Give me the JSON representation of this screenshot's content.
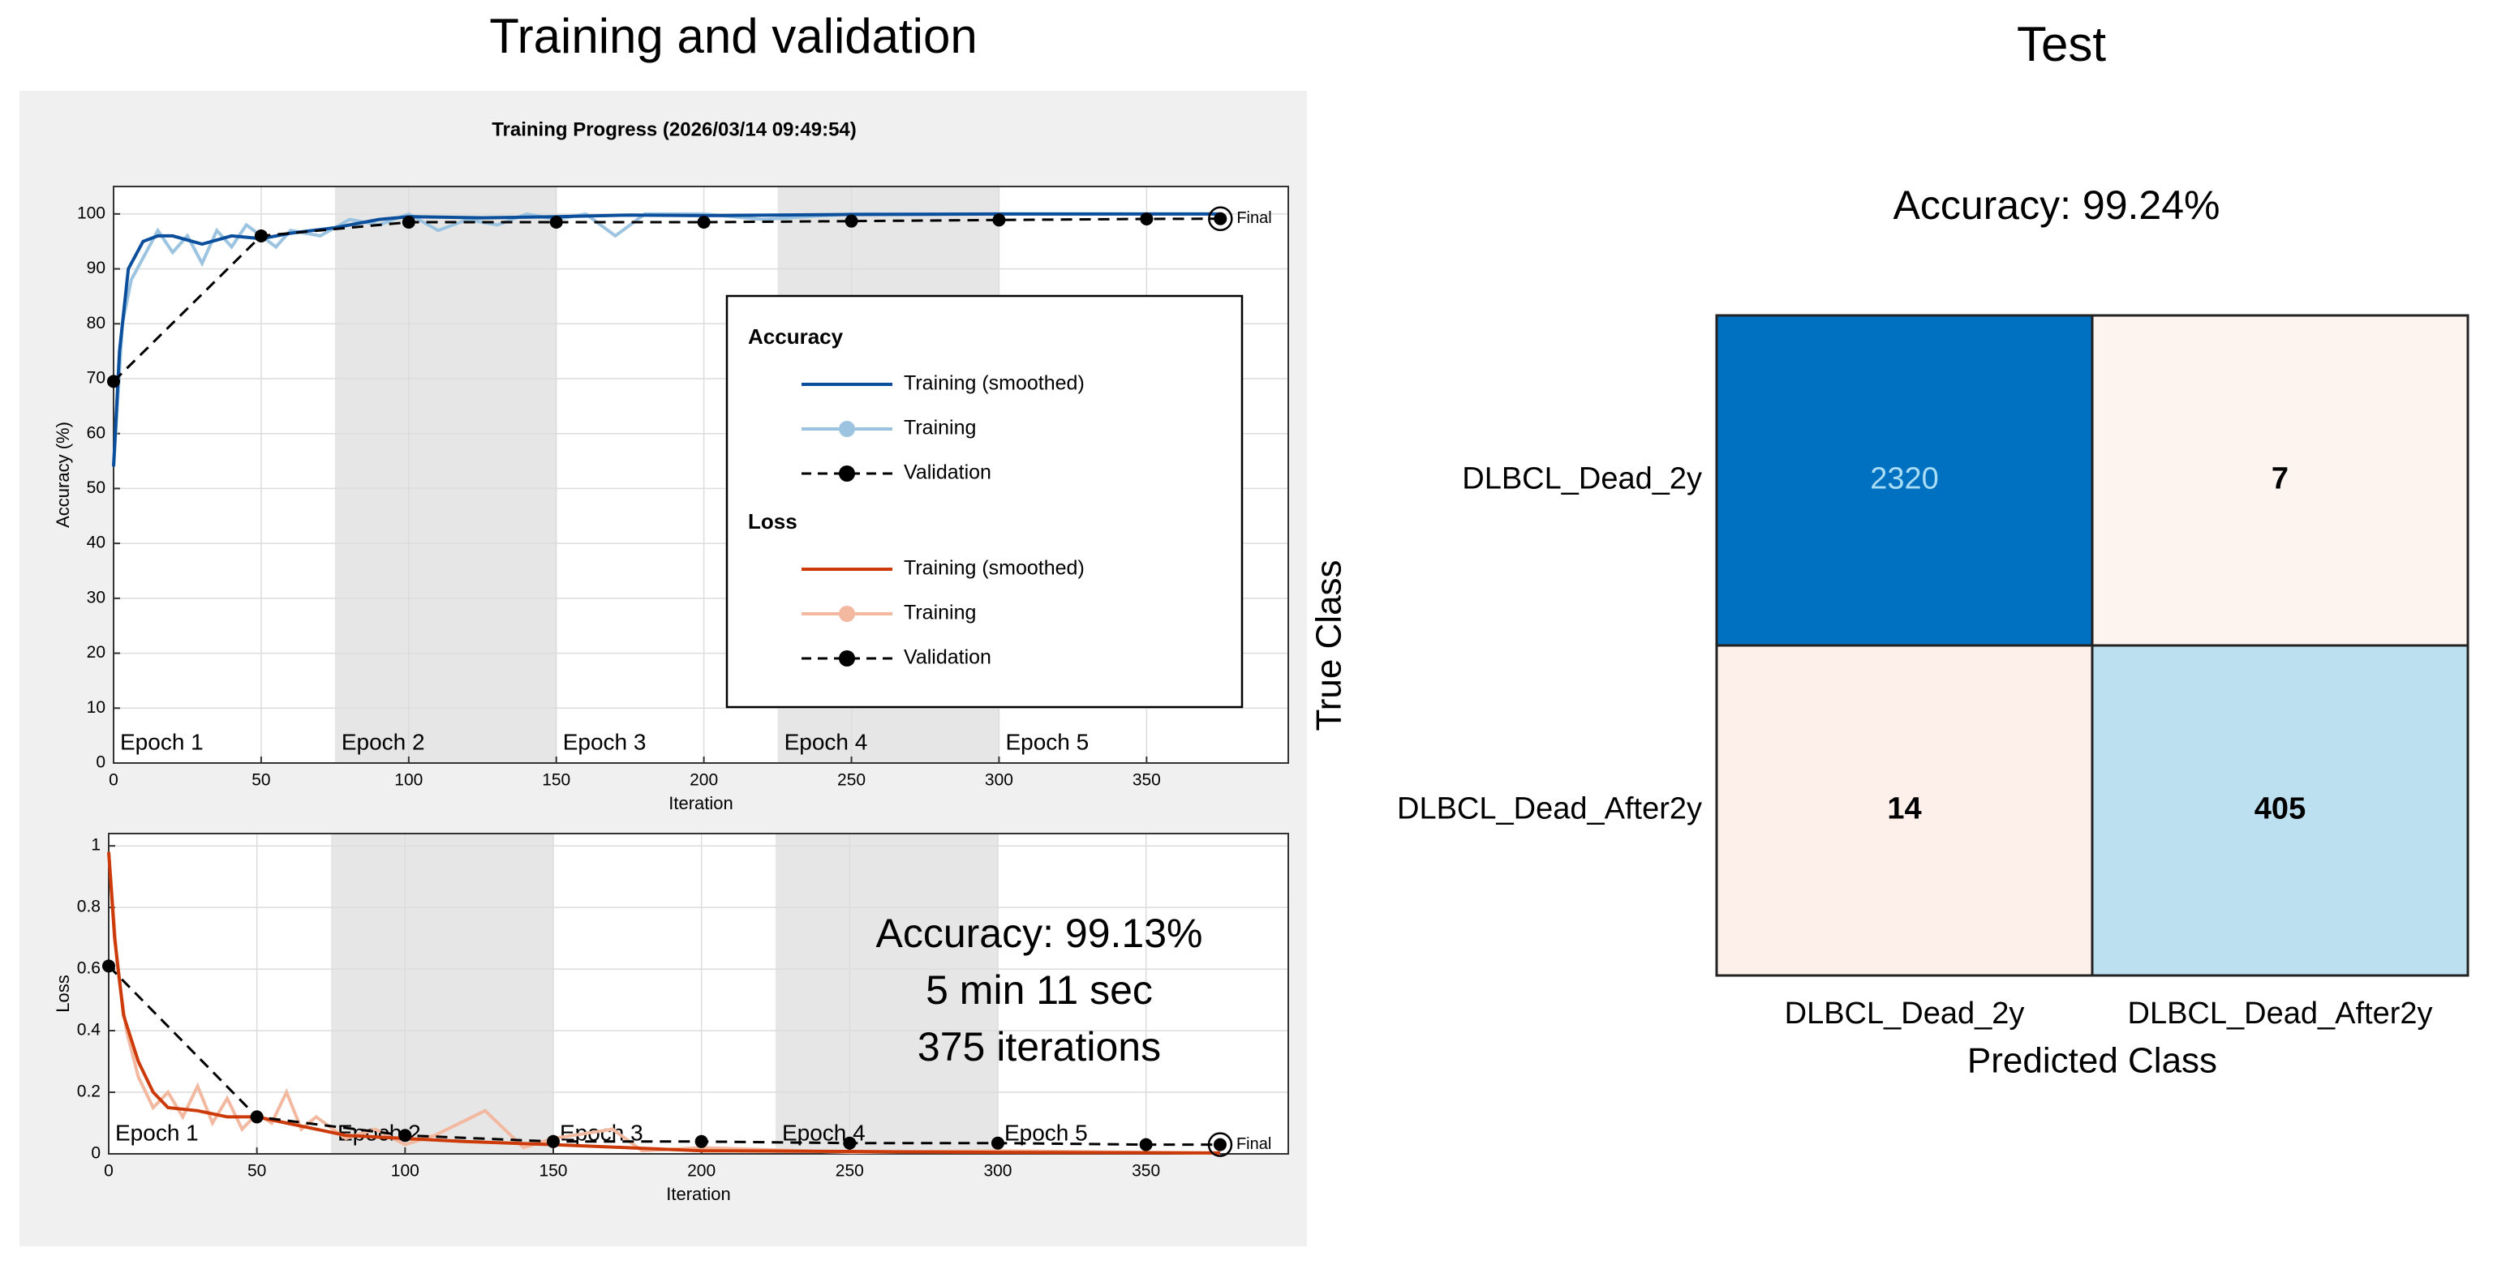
{
  "panel_titles": [
    "Training and validation",
    "Test"
  ],
  "progress_title": "Training Progress (2026/03/14 09:49:54)",
  "chart_data": [
    {
      "type": "line",
      "ylabel": "Accuracy (%)",
      "xlabel": "Iteration",
      "legend_title": "Accuracy",
      "final_label": "Final",
      "xlim": [
        0,
        398
      ],
      "ylim": [
        0,
        105
      ],
      "xticks": [
        0,
        50,
        100,
        150,
        200,
        250,
        300,
        350
      ],
      "yticks": [
        0,
        10,
        20,
        30,
        40,
        50,
        60,
        70,
        80,
        90,
        100
      ],
      "grid": true,
      "epochs": [
        {
          "start": 0,
          "end": 75,
          "label": "Epoch 1",
          "shaded": false
        },
        {
          "start": 75,
          "end": 150,
          "label": "Epoch 2",
          "shaded": true
        },
        {
          "start": 150,
          "end": 225,
          "label": "Epoch 3",
          "shaded": false
        },
        {
          "start": 225,
          "end": 300,
          "label": "Epoch 4",
          "shaded": true
        },
        {
          "start": 300,
          "end": 375,
          "label": "Epoch 5",
          "shaded": false
        }
      ],
      "series": [
        {
          "name": "Training (smoothed)",
          "color": "#0b4f9c",
          "dashed": false,
          "markers": false,
          "legend_marker": false,
          "x": [
            0,
            2,
            5,
            10,
            15,
            20,
            30,
            40,
            50,
            60,
            75,
            90,
            100,
            125,
            150,
            175,
            200,
            250,
            300,
            375
          ],
          "values": [
            54,
            75,
            90,
            95,
            96,
            96,
            94.5,
            96,
            95.5,
            96.5,
            97.5,
            99,
            99.5,
            99.3,
            99.5,
            99.8,
            99.7,
            99.9,
            100,
            100
          ]
        },
        {
          "name": "Training",
          "color": "#9cc4e0",
          "dashed": false,
          "markers": false,
          "legend_marker": true,
          "x": [
            0,
            3,
            6,
            10,
            15,
            20,
            25,
            30,
            35,
            40,
            45,
            50,
            55,
            60,
            70,
            80,
            90,
            100,
            110,
            120,
            130,
            140,
            150,
            160,
            170,
            180,
            200,
            220,
            250,
            300,
            375
          ],
          "values": [
            54,
            80,
            88,
            92,
            97,
            93,
            96,
            91,
            97,
            94,
            98,
            96,
            94,
            97,
            96,
            99,
            98,
            100,
            97,
            99,
            98,
            100,
            99,
            100,
            96,
            100,
            100,
            99,
            100,
            100,
            100
          ]
        },
        {
          "name": "Validation",
          "color": "#000000",
          "dashed": true,
          "markers": true,
          "legend_marker": true,
          "x": [
            0,
            50,
            100,
            150,
            200,
            250,
            300,
            350,
            375
          ],
          "values": [
            69.5,
            96,
            98.5,
            98.5,
            98.5,
            98.7,
            98.9,
            99.1,
            99.13
          ]
        }
      ]
    },
    {
      "type": "line",
      "ylabel": "Loss",
      "xlabel": "Iteration",
      "legend_title": "Loss",
      "final_label": "Final",
      "xlim": [
        0,
        398
      ],
      "ylim": [
        0,
        1.04
      ],
      "xticks": [
        0,
        50,
        100,
        150,
        200,
        250,
        300,
        350
      ],
      "yticks": [
        0,
        0.2,
        0.4,
        0.6,
        0.8,
        1
      ],
      "grid": true,
      "epochs": [
        {
          "start": 0,
          "end": 75,
          "label": "Epoch 1",
          "shaded": false
        },
        {
          "start": 75,
          "end": 150,
          "label": "Epoch 2",
          "shaded": true
        },
        {
          "start": 150,
          "end": 225,
          "label": "Epoch 3",
          "shaded": false
        },
        {
          "start": 225,
          "end": 300,
          "label": "Epoch 4",
          "shaded": true
        },
        {
          "start": 300,
          "end": 375,
          "label": "Epoch 5",
          "shaded": false
        }
      ],
      "annotations": [
        "Accuracy: 99.13%",
        "5 min 11 sec",
        "375 iterations"
      ],
      "series": [
        {
          "name": "Training (smoothed)",
          "color": "#cc3a0a",
          "dashed": false,
          "markers": false,
          "legend_marker": false,
          "x": [
            0,
            2,
            5,
            10,
            15,
            20,
            30,
            40,
            50,
            60,
            70,
            80,
            100,
            120,
            150,
            175,
            200,
            250,
            300,
            375
          ],
          "values": [
            0.98,
            0.7,
            0.45,
            0.3,
            0.2,
            0.15,
            0.14,
            0.12,
            0.12,
            0.1,
            0.08,
            0.06,
            0.05,
            0.04,
            0.03,
            0.02,
            0.01,
            0.008,
            0.005,
            0.003
          ]
        },
        {
          "name": "Training",
          "color": "#f2b8a0",
          "dashed": false,
          "markers": false,
          "legend_marker": true,
          "x": [
            0,
            3,
            6,
            10,
            15,
            20,
            25,
            30,
            35,
            40,
            45,
            50,
            55,
            60,
            65,
            70,
            80,
            90,
            100,
            110,
            127,
            140,
            150,
            170,
            180,
            200,
            250,
            300,
            375
          ],
          "values": [
            0.98,
            0.6,
            0.4,
            0.25,
            0.15,
            0.2,
            0.12,
            0.22,
            0.1,
            0.18,
            0.08,
            0.13,
            0.1,
            0.2,
            0.08,
            0.12,
            0.05,
            0.08,
            0.03,
            0.06,
            0.14,
            0.02,
            0.05,
            0.08,
            0.01,
            0.02,
            0.005,
            0.01,
            0.002
          ]
        },
        {
          "name": "Validation",
          "color": "#000000",
          "dashed": true,
          "markers": true,
          "legend_marker": true,
          "x": [
            0,
            50,
            100,
            150,
            200,
            250,
            300,
            350,
            375
          ],
          "values": [
            0.61,
            0.12,
            0.06,
            0.04,
            0.04,
            0.035,
            0.035,
            0.03,
            0.03
          ]
        }
      ]
    },
    {
      "type": "confusion_matrix",
      "title": "Accuracy: 99.24%",
      "xlabel": "Predicted Class",
      "ylabel": "True Class",
      "rows": [
        "DLBCL_Dead_2y",
        "DLBCL_Dead_After2y"
      ],
      "columns": [
        "DLBCL_Dead_2y",
        "DLBCL_Dead_After2y"
      ],
      "values": [
        [
          2320,
          7
        ],
        [
          14,
          405
        ]
      ],
      "cell_colors": [
        [
          "#0070c0",
          "#fdf3ef"
        ],
        [
          "#fdf0ea",
          "#bde0f0"
        ]
      ],
      "text_colors": [
        [
          "#a8ddf5",
          "#000000"
        ],
        [
          "#000000",
          "#000000"
        ]
      ]
    }
  ]
}
